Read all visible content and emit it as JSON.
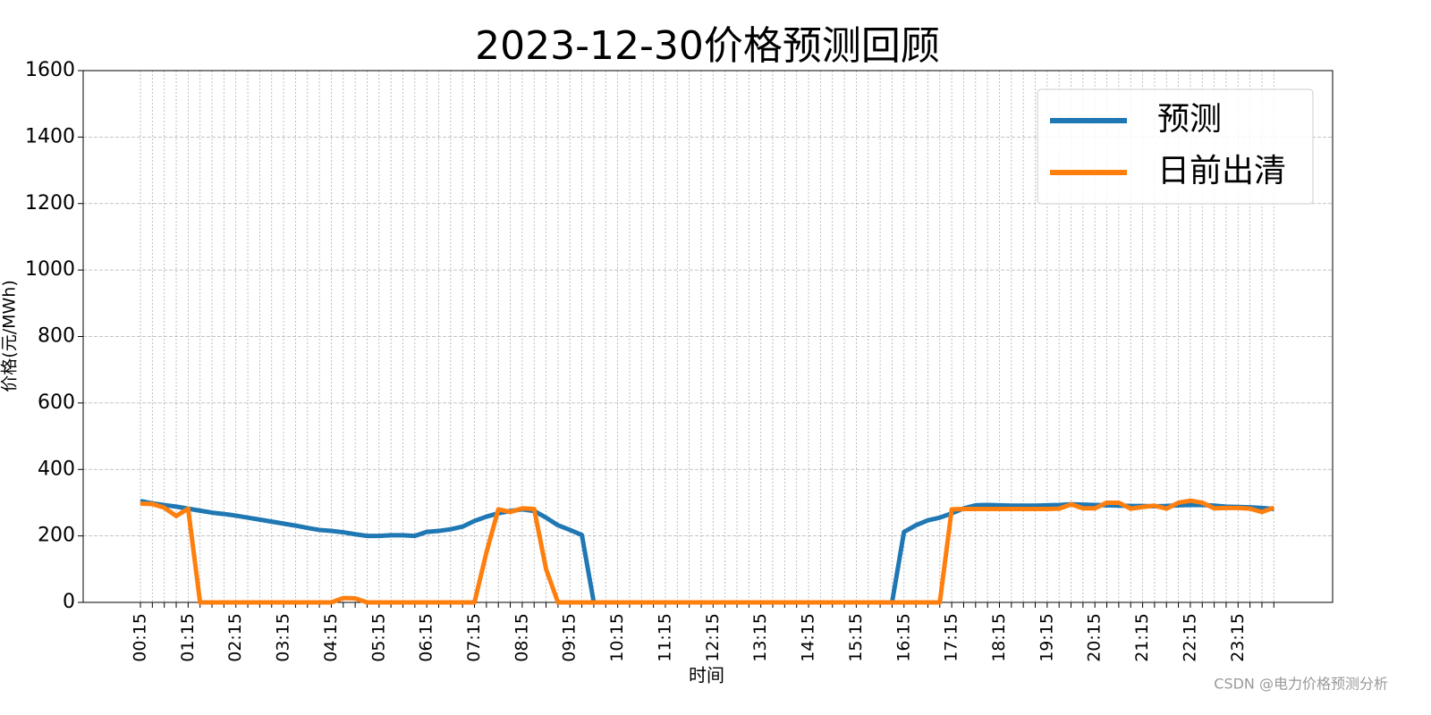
{
  "chart_data": {
    "type": "line",
    "title": "2023-12-30价格预测回顾",
    "xlabel": "时间",
    "ylabel": "价格(元/MWh)",
    "categories": [
      "00:15",
      null,
      null,
      null,
      "01:15",
      null,
      null,
      null,
      "02:15",
      null,
      null,
      null,
      "03:15",
      null,
      null,
      null,
      "04:15",
      null,
      null,
      null,
      "05:15",
      null,
      null,
      null,
      "06:15",
      null,
      null,
      null,
      "07:15",
      null,
      null,
      null,
      "08:15",
      null,
      null,
      null,
      "09:15",
      null,
      null,
      null,
      "10:15",
      null,
      null,
      null,
      "11:15",
      null,
      null,
      null,
      "12:15",
      null,
      null,
      null,
      "13:15",
      null,
      null,
      null,
      "14:15",
      null,
      null,
      null,
      "15:15",
      null,
      null,
      null,
      "16:15",
      null,
      null,
      null,
      "17:15",
      null,
      null,
      null,
      "18:15",
      null,
      null,
      null,
      "19:15",
      null,
      null,
      null,
      "20:15",
      null,
      null,
      null,
      "21:15",
      null,
      null,
      null,
      "22:15",
      null,
      null,
      null,
      "23:15",
      null,
      null,
      null
    ],
    "series": [
      {
        "name": "预测",
        "color": "#1f77b4",
        "values": [
          305,
          298,
          293,
          288,
          282,
          276,
          270,
          266,
          261,
          255,
          249,
          243,
          237,
          231,
          224,
          218,
          215,
          211,
          205,
          200,
          200,
          202,
          202,
          200,
          212,
          215,
          220,
          228,
          245,
          258,
          268,
          275,
          280,
          275,
          255,
          232,
          218,
          203,
          0,
          0,
          0,
          0,
          0,
          0,
          0,
          0,
          0,
          0,
          0,
          0,
          0,
          0,
          0,
          0,
          0,
          0,
          0,
          0,
          0,
          0,
          0,
          0,
          0,
          0,
          212,
          232,
          247,
          255,
          268,
          283,
          292,
          293,
          292,
          291,
          291,
          291,
          292,
          293,
          295,
          294,
          293,
          292,
          291,
          290,
          290,
          289,
          290,
          292,
          293,
          293,
          291,
          288,
          287,
          286,
          284,
          281
        ]
      },
      {
        "name": "日前出清",
        "color": "#ff7f0e",
        "values": [
          297,
          296,
          285,
          260,
          282,
          0,
          0,
          0,
          0,
          0,
          0,
          0,
          0,
          0,
          0,
          0,
          0,
          13,
          12,
          0,
          0,
          0,
          0,
          0,
          0,
          0,
          0,
          0,
          0,
          150,
          280,
          272,
          283,
          281,
          100,
          0,
          0,
          0,
          0,
          0,
          0,
          0,
          0,
          0,
          0,
          0,
          0,
          0,
          0,
          0,
          0,
          0,
          0,
          0,
          0,
          0,
          0,
          0,
          0,
          0,
          0,
          0,
          0,
          0,
          0,
          0,
          0,
          0,
          280,
          281,
          281,
          281,
          281,
          281,
          281,
          281,
          281,
          282,
          295,
          283,
          283,
          300,
          300,
          282,
          287,
          291,
          282,
          300,
          306,
          300,
          283,
          284,
          284,
          282,
          272,
          285
        ]
      }
    ],
    "ylim": [
      0,
      1600
    ],
    "yticks": [
      0,
      200,
      400,
      600,
      800,
      1000,
      1200,
      1400,
      1600
    ],
    "grid": true,
    "legend": "upper right",
    "watermark": "CSDN @电力价格预测分析"
  }
}
